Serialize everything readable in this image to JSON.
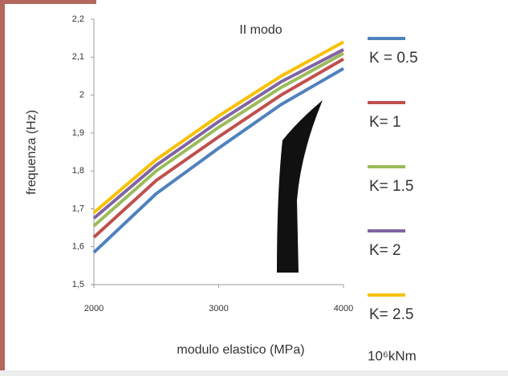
{
  "chart_data": {
    "type": "line",
    "title": "II modo",
    "x_label": "modulo elastico (MPa)",
    "y_label": "frequenza (Hz)",
    "legend_unit": "10⁶kNm",
    "x": [
      2000,
      2500,
      3000,
      3500,
      4000
    ],
    "series": [
      {
        "name": "K = 0.5",
        "color": "#4f81bd",
        "values": [
          1.585,
          1.74,
          1.86,
          1.975,
          2.07
        ]
      },
      {
        "name": "K= 1",
        "color": "#c0504d",
        "values": [
          1.625,
          1.775,
          1.89,
          2.0,
          2.095
        ]
      },
      {
        "name": "K= 1.5",
        "color": "#9bbb59",
        "values": [
          1.655,
          1.8,
          1.915,
          2.02,
          2.11
        ]
      },
      {
        "name": "K= 2",
        "color": "#8064a2",
        "values": [
          1.675,
          1.815,
          1.93,
          2.035,
          2.12
        ]
      },
      {
        "name": "K= 2.5",
        "color": "#f9c000",
        "values": [
          1.69,
          1.83,
          1.945,
          2.05,
          2.14
        ]
      }
    ],
    "xlim": [
      2000,
      4000
    ],
    "xticks": [
      2000,
      3000,
      4000
    ],
    "ylim": [
      1.5,
      2.2
    ],
    "yticks": [
      {
        "value": 1.5,
        "label": "1,5"
      },
      {
        "value": 1.6,
        "label": "1,6"
      },
      {
        "value": 1.7,
        "label": "1,7"
      },
      {
        "value": 1.8,
        "label": "1,8"
      },
      {
        "value": 1.9,
        "label": "1,9"
      },
      2,
      {
        "value": 2.1,
        "label": "2,1"
      },
      {
        "value": 2.2,
        "label": "2,2"
      }
    ],
    "grid": false,
    "legend": "right"
  }
}
